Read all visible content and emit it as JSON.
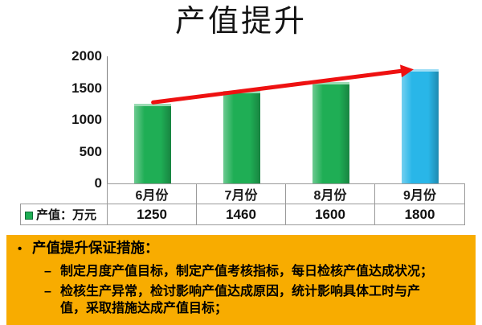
{
  "slide": {
    "title": "产值提升"
  },
  "chart_data": {
    "type": "bar",
    "title": "产值提升",
    "categories": [
      "6月份",
      "7月份",
      "8月份",
      "9月份"
    ],
    "series": [
      {
        "name": "产值：万元",
        "values": [
          1250,
          1460,
          1600,
          1800
        ]
      }
    ],
    "xlabel": "",
    "ylabel": "",
    "ylim": [
      0,
      2000
    ],
    "yticks": [
      0,
      500,
      1000,
      1500,
      2000
    ],
    "grid": false,
    "legend_position": "bottom-left-data-table",
    "bar_colors": [
      "#1fae55",
      "#1fae55",
      "#1fae55",
      "#29b6e8"
    ],
    "annotations": [
      {
        "type": "trend-arrow",
        "color": "#ee1111",
        "from_category": "6月份",
        "to_category": "9月份"
      }
    ]
  },
  "data_table": {
    "legend": {
      "label": "产值：万元",
      "swatch_color": "#1fae55"
    },
    "columns": [
      "6月份",
      "7月份",
      "8月份",
      "9月份"
    ],
    "values": [
      "1250",
      "1460",
      "1600",
      "1800"
    ]
  },
  "notes": {
    "background_color": "#f8ac00",
    "bullet_glyph": "•",
    "dash_glyph": "–",
    "heading": "产值提升保证措施：",
    "items": [
      "制定月度产值目标，制定产值考核指标，每日检核产值达成状况；",
      "检核生产异常，检讨影响产值达成原因，统计影响具体工时与产值，采取措施达成产值目标；"
    ]
  }
}
